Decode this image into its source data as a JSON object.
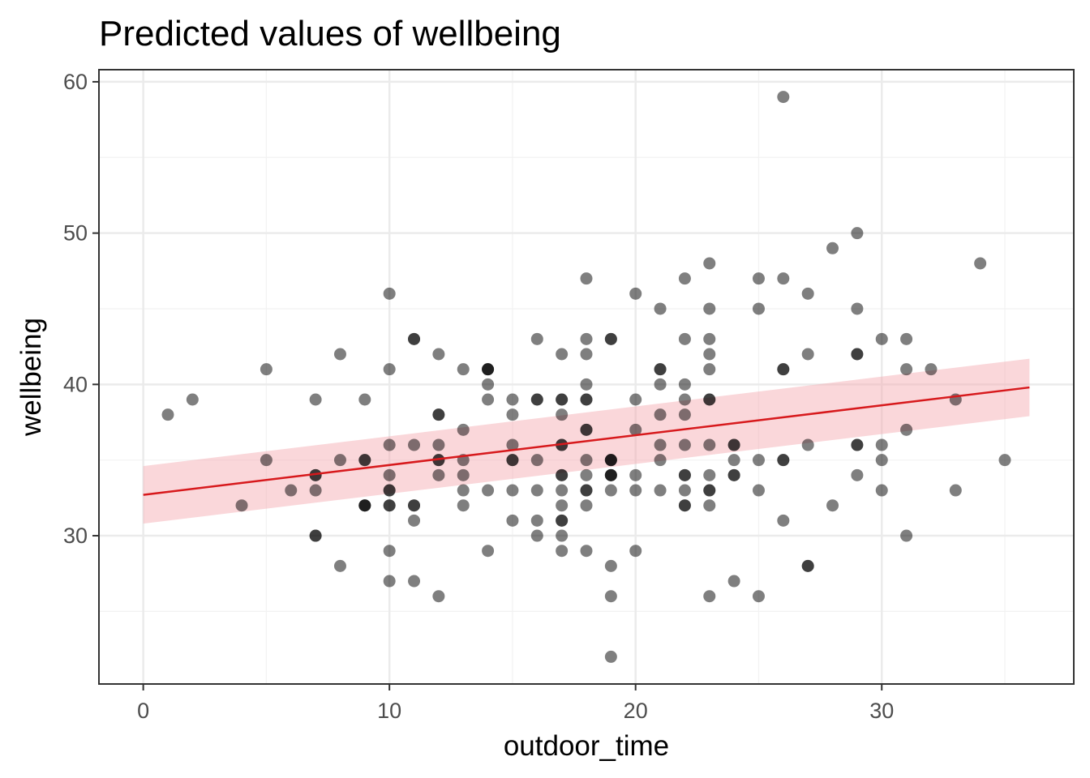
{
  "chart_data": {
    "type": "scatter",
    "title": "Predicted values of wellbeing",
    "xlabel": "outdoor_time",
    "ylabel": "wellbeing",
    "xlim": [
      -1.8,
      37.8
    ],
    "ylim": [
      20.2,
      60.8
    ],
    "x_ticks": [
      0,
      10,
      20,
      30
    ],
    "y_ticks": [
      30,
      40,
      50,
      60
    ],
    "x_minor_ticks": [
      5,
      15,
      25,
      35
    ],
    "y_minor_ticks": [
      25,
      35,
      45,
      55
    ],
    "grid": true,
    "point_color": "#000000",
    "point_opacity": 0.5,
    "fit_line_color": "#d7191c",
    "ribbon_color": "#f4a6ad",
    "fit_line": {
      "x": [
        0,
        36
      ],
      "y": [
        32.7,
        39.8
      ],
      "ci_lower": [
        30.8,
        37.9
      ],
      "ci_upper": [
        34.6,
        41.7
      ]
    },
    "points": [
      {
        "x": 1,
        "y": 38
      },
      {
        "x": 2,
        "y": 39
      },
      {
        "x": 4,
        "y": 32
      },
      {
        "x": 5,
        "y": 41
      },
      {
        "x": 5,
        "y": 35
      },
      {
        "x": 6,
        "y": 33
      },
      {
        "x": 7,
        "y": 39
      },
      {
        "x": 7,
        "y": 34
      },
      {
        "x": 7,
        "y": 34
      },
      {
        "x": 7,
        "y": 33
      },
      {
        "x": 7,
        "y": 30
      },
      {
        "x": 7,
        "y": 30
      },
      {
        "x": 8,
        "y": 42
      },
      {
        "x": 8,
        "y": 35
      },
      {
        "x": 8,
        "y": 28
      },
      {
        "x": 9,
        "y": 39
      },
      {
        "x": 9,
        "y": 35
      },
      {
        "x": 9,
        "y": 35
      },
      {
        "x": 9,
        "y": 32
      },
      {
        "x": 9,
        "y": 32
      },
      {
        "x": 9,
        "y": 32
      },
      {
        "x": 10,
        "y": 46
      },
      {
        "x": 10,
        "y": 41
      },
      {
        "x": 10,
        "y": 36
      },
      {
        "x": 10,
        "y": 34
      },
      {
        "x": 10,
        "y": 33
      },
      {
        "x": 10,
        "y": 33
      },
      {
        "x": 10,
        "y": 32
      },
      {
        "x": 10,
        "y": 32
      },
      {
        "x": 10,
        "y": 29
      },
      {
        "x": 10,
        "y": 27
      },
      {
        "x": 11,
        "y": 43
      },
      {
        "x": 11,
        "y": 43
      },
      {
        "x": 11,
        "y": 36
      },
      {
        "x": 11,
        "y": 32
      },
      {
        "x": 11,
        "y": 32
      },
      {
        "x": 11,
        "y": 31
      },
      {
        "x": 11,
        "y": 27
      },
      {
        "x": 12,
        "y": 42
      },
      {
        "x": 12,
        "y": 38
      },
      {
        "x": 12,
        "y": 38
      },
      {
        "x": 12,
        "y": 36
      },
      {
        "x": 12,
        "y": 35
      },
      {
        "x": 12,
        "y": 35
      },
      {
        "x": 12,
        "y": 34
      },
      {
        "x": 12,
        "y": 26
      },
      {
        "x": 13,
        "y": 41
      },
      {
        "x": 13,
        "y": 37
      },
      {
        "x": 13,
        "y": 35
      },
      {
        "x": 13,
        "y": 34
      },
      {
        "x": 13,
        "y": 33
      },
      {
        "x": 13,
        "y": 32
      },
      {
        "x": 14,
        "y": 41
      },
      {
        "x": 14,
        "y": 41
      },
      {
        "x": 14,
        "y": 41
      },
      {
        "x": 14,
        "y": 40
      },
      {
        "x": 14,
        "y": 39
      },
      {
        "x": 14,
        "y": 33
      },
      {
        "x": 14,
        "y": 29
      },
      {
        "x": 15,
        "y": 39
      },
      {
        "x": 15,
        "y": 38
      },
      {
        "x": 15,
        "y": 36
      },
      {
        "x": 15,
        "y": 35
      },
      {
        "x": 15,
        "y": 35
      },
      {
        "x": 15,
        "y": 33
      },
      {
        "x": 15,
        "y": 31
      },
      {
        "x": 16,
        "y": 43
      },
      {
        "x": 16,
        "y": 39
      },
      {
        "x": 16,
        "y": 39
      },
      {
        "x": 16,
        "y": 35
      },
      {
        "x": 16,
        "y": 33
      },
      {
        "x": 16,
        "y": 31
      },
      {
        "x": 16,
        "y": 30
      },
      {
        "x": 17,
        "y": 42
      },
      {
        "x": 17,
        "y": 39
      },
      {
        "x": 17,
        "y": 39
      },
      {
        "x": 17,
        "y": 38
      },
      {
        "x": 17,
        "y": 36
      },
      {
        "x": 17,
        "y": 36
      },
      {
        "x": 17,
        "y": 34
      },
      {
        "x": 17,
        "y": 34
      },
      {
        "x": 17,
        "y": 33
      },
      {
        "x": 17,
        "y": 32
      },
      {
        "x": 17,
        "y": 31
      },
      {
        "x": 17,
        "y": 31
      },
      {
        "x": 17,
        "y": 30
      },
      {
        "x": 17,
        "y": 29
      },
      {
        "x": 18,
        "y": 47
      },
      {
        "x": 18,
        "y": 43
      },
      {
        "x": 18,
        "y": 42
      },
      {
        "x": 18,
        "y": 40
      },
      {
        "x": 18,
        "y": 39
      },
      {
        "x": 18,
        "y": 39
      },
      {
        "x": 18,
        "y": 37
      },
      {
        "x": 18,
        "y": 37
      },
      {
        "x": 18,
        "y": 35
      },
      {
        "x": 18,
        "y": 34
      },
      {
        "x": 18,
        "y": 33
      },
      {
        "x": 18,
        "y": 33
      },
      {
        "x": 18,
        "y": 32
      },
      {
        "x": 18,
        "y": 29
      },
      {
        "x": 19,
        "y": 43
      },
      {
        "x": 19,
        "y": 43
      },
      {
        "x": 19,
        "y": 35
      },
      {
        "x": 19,
        "y": 35
      },
      {
        "x": 19,
        "y": 35
      },
      {
        "x": 19,
        "y": 34
      },
      {
        "x": 19,
        "y": 34
      },
      {
        "x": 19,
        "y": 34
      },
      {
        "x": 19,
        "y": 33
      },
      {
        "x": 19,
        "y": 28
      },
      {
        "x": 19,
        "y": 26
      },
      {
        "x": 19,
        "y": 22
      },
      {
        "x": 20,
        "y": 46
      },
      {
        "x": 20,
        "y": 39
      },
      {
        "x": 20,
        "y": 37
      },
      {
        "x": 20,
        "y": 34
      },
      {
        "x": 20,
        "y": 33
      },
      {
        "x": 20,
        "y": 29
      },
      {
        "x": 21,
        "y": 45
      },
      {
        "x": 21,
        "y": 41
      },
      {
        "x": 21,
        "y": 41
      },
      {
        "x": 21,
        "y": 40
      },
      {
        "x": 21,
        "y": 38
      },
      {
        "x": 21,
        "y": 36
      },
      {
        "x": 21,
        "y": 35
      },
      {
        "x": 21,
        "y": 33
      },
      {
        "x": 22,
        "y": 47
      },
      {
        "x": 22,
        "y": 43
      },
      {
        "x": 22,
        "y": 40
      },
      {
        "x": 22,
        "y": 39
      },
      {
        "x": 22,
        "y": 38
      },
      {
        "x": 22,
        "y": 36
      },
      {
        "x": 22,
        "y": 34
      },
      {
        "x": 22,
        "y": 34
      },
      {
        "x": 22,
        "y": 33
      },
      {
        "x": 22,
        "y": 32
      },
      {
        "x": 22,
        "y": 32
      },
      {
        "x": 23,
        "y": 48
      },
      {
        "x": 23,
        "y": 45
      },
      {
        "x": 23,
        "y": 43
      },
      {
        "x": 23,
        "y": 42
      },
      {
        "x": 23,
        "y": 41
      },
      {
        "x": 23,
        "y": 39
      },
      {
        "x": 23,
        "y": 39
      },
      {
        "x": 23,
        "y": 36
      },
      {
        "x": 23,
        "y": 34
      },
      {
        "x": 23,
        "y": 33
      },
      {
        "x": 23,
        "y": 33
      },
      {
        "x": 23,
        "y": 32
      },
      {
        "x": 23,
        "y": 26
      },
      {
        "x": 24,
        "y": 36
      },
      {
        "x": 24,
        "y": 36
      },
      {
        "x": 24,
        "y": 35
      },
      {
        "x": 24,
        "y": 34
      },
      {
        "x": 24,
        "y": 34
      },
      {
        "x": 24,
        "y": 27
      },
      {
        "x": 25,
        "y": 47
      },
      {
        "x": 25,
        "y": 45
      },
      {
        "x": 25,
        "y": 35
      },
      {
        "x": 25,
        "y": 33
      },
      {
        "x": 25,
        "y": 26
      },
      {
        "x": 26,
        "y": 59
      },
      {
        "x": 26,
        "y": 47
      },
      {
        "x": 26,
        "y": 41
      },
      {
        "x": 26,
        "y": 41
      },
      {
        "x": 26,
        "y": 35
      },
      {
        "x": 26,
        "y": 35
      },
      {
        "x": 26,
        "y": 31
      },
      {
        "x": 27,
        "y": 46
      },
      {
        "x": 27,
        "y": 42
      },
      {
        "x": 27,
        "y": 36
      },
      {
        "x": 27,
        "y": 28
      },
      {
        "x": 27,
        "y": 28
      },
      {
        "x": 28,
        "y": 49
      },
      {
        "x": 28,
        "y": 32
      },
      {
        "x": 29,
        "y": 50
      },
      {
        "x": 29,
        "y": 45
      },
      {
        "x": 29,
        "y": 42
      },
      {
        "x": 29,
        "y": 42
      },
      {
        "x": 29,
        "y": 36
      },
      {
        "x": 29,
        "y": 36
      },
      {
        "x": 29,
        "y": 34
      },
      {
        "x": 30,
        "y": 43
      },
      {
        "x": 30,
        "y": 36
      },
      {
        "x": 30,
        "y": 35
      },
      {
        "x": 30,
        "y": 33
      },
      {
        "x": 31,
        "y": 43
      },
      {
        "x": 31,
        "y": 41
      },
      {
        "x": 31,
        "y": 37
      },
      {
        "x": 31,
        "y": 30
      },
      {
        "x": 32,
        "y": 41
      },
      {
        "x": 33,
        "y": 39
      },
      {
        "x": 33,
        "y": 33
      },
      {
        "x": 34,
        "y": 48
      },
      {
        "x": 35,
        "y": 35
      }
    ]
  }
}
